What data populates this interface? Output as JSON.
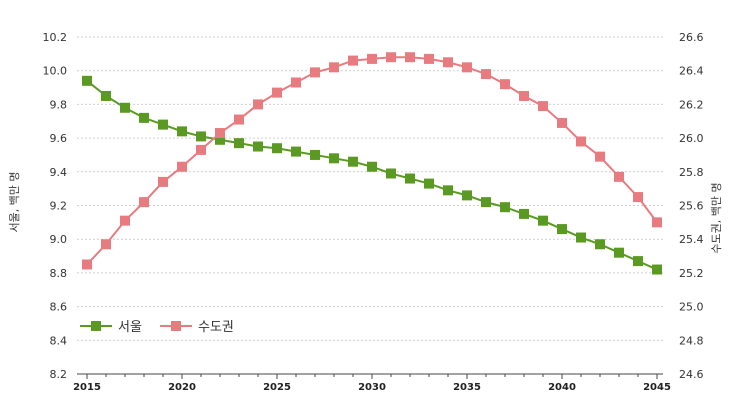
{
  "chart_data": {
    "type": "line",
    "x": [
      2015,
      2016,
      2017,
      2018,
      2019,
      2020,
      2021,
      2022,
      2023,
      2024,
      2025,
      2026,
      2027,
      2028,
      2029,
      2030,
      2031,
      2032,
      2033,
      2034,
      2035,
      2036,
      2037,
      2038,
      2039,
      2040,
      2041,
      2042,
      2043,
      2044,
      2045
    ],
    "x_ticks": [
      "2015",
      "2020",
      "2025",
      "2030",
      "2035",
      "2040",
      "2045"
    ],
    "ylabel_left": "서울, 백만 명",
    "ylabel_right": "수도권, 백만 명",
    "ylim_left": [
      8.2,
      10.2
    ],
    "ylim_right": [
      24.6,
      26.6
    ],
    "y_ticks_left": [
      "8.2",
      "8.4",
      "8.6",
      "8.8",
      "9.0",
      "9.2",
      "9.4",
      "9.6",
      "9.8",
      "10.0",
      "10.2"
    ],
    "y_ticks_right": [
      "24.6",
      "24.8",
      "25.0",
      "25.2",
      "25.4",
      "25.6",
      "25.8",
      "26.0",
      "26.2",
      "26.4",
      "26.6"
    ],
    "grid": "horizontal dashed",
    "legend_position": "bottom-left",
    "series": [
      {
        "name": "서울",
        "axis": "left",
        "color": "#5a9a22",
        "values": [
          9.94,
          9.85,
          9.78,
          9.72,
          9.68,
          9.64,
          9.61,
          9.59,
          9.57,
          9.55,
          9.54,
          9.52,
          9.5,
          9.48,
          9.46,
          9.43,
          9.39,
          9.36,
          9.33,
          9.29,
          9.26,
          9.22,
          9.19,
          9.15,
          9.11,
          9.06,
          9.01,
          8.97,
          8.92,
          8.87,
          8.82
        ]
      },
      {
        "name": "수도권",
        "axis": "right",
        "color": "#e87b80",
        "values": [
          25.25,
          25.37,
          25.51,
          25.62,
          25.74,
          25.83,
          25.93,
          26.03,
          26.11,
          26.2,
          26.27,
          26.33,
          26.39,
          26.42,
          26.46,
          26.47,
          26.48,
          26.48,
          26.47,
          26.45,
          26.42,
          26.38,
          26.32,
          26.25,
          26.19,
          26.09,
          25.98,
          25.89,
          25.77,
          25.65,
          25.5
        ]
      }
    ]
  }
}
